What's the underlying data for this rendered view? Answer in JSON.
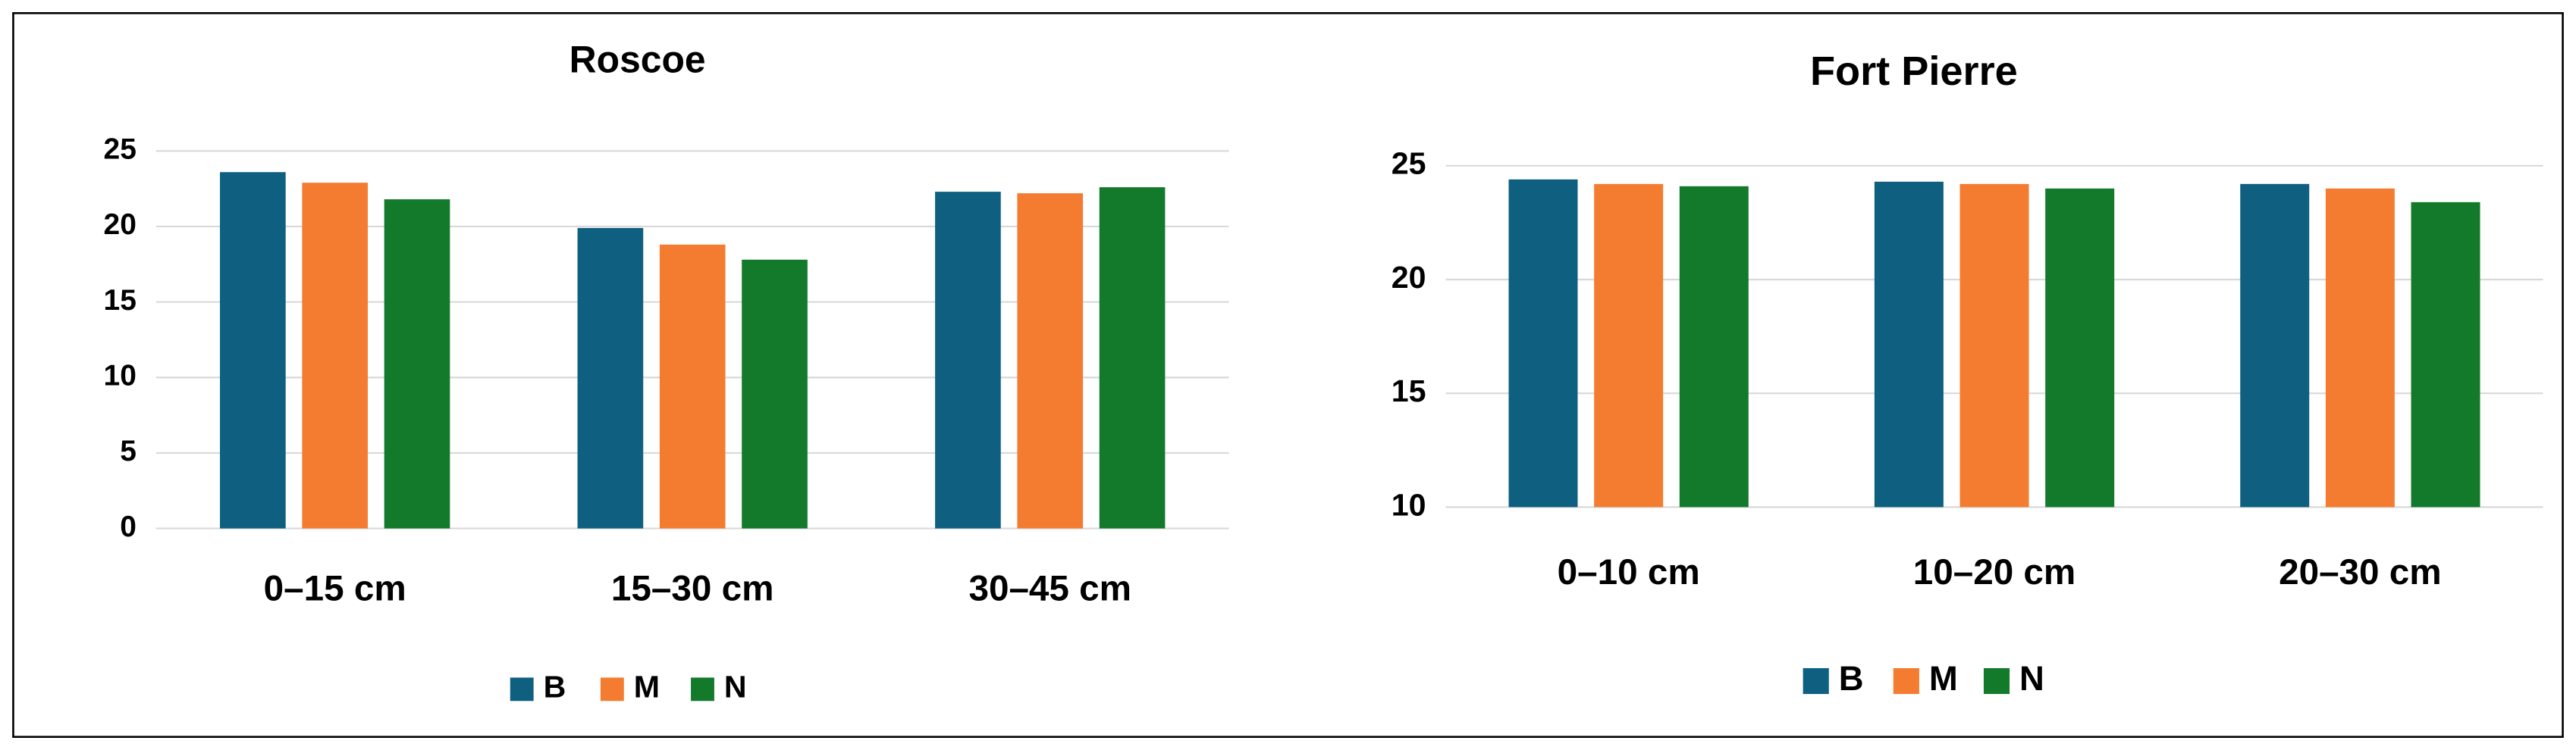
{
  "chart_data": [
    {
      "type": "bar",
      "title": "Roscoe",
      "categories": [
        "0–15 cm",
        "15–30 cm",
        "30–45 cm"
      ],
      "series": [
        {
          "name": "B",
          "color": "#0e5f80",
          "values": [
            23.6,
            19.9,
            22.3
          ]
        },
        {
          "name": "M",
          "color": "#f47c30",
          "values": [
            22.9,
            18.8,
            22.2
          ]
        },
        {
          "name": "N",
          "color": "#137a2c",
          "values": [
            21.8,
            17.8,
            22.6
          ]
        }
      ],
      "ylim": [
        0,
        25
      ],
      "yticks": [
        0,
        5,
        10,
        15,
        20,
        25
      ],
      "grid": true,
      "legend": "bottom"
    },
    {
      "type": "bar",
      "title": "Fort Pierre",
      "categories": [
        "0–10 cm",
        "10–20 cm",
        "20–30 cm"
      ],
      "series": [
        {
          "name": "B",
          "color": "#0e5f80",
          "values": [
            24.4,
            24.3,
            24.2
          ]
        },
        {
          "name": "M",
          "color": "#f47c30",
          "values": [
            24.2,
            24.2,
            24.0
          ]
        },
        {
          "name": "N",
          "color": "#137a2c",
          "values": [
            24.1,
            24.0,
            23.4
          ]
        }
      ],
      "ylim": [
        10,
        25
      ],
      "yticks": [
        10,
        15,
        20,
        25
      ],
      "grid": true,
      "legend": "bottom"
    }
  ]
}
